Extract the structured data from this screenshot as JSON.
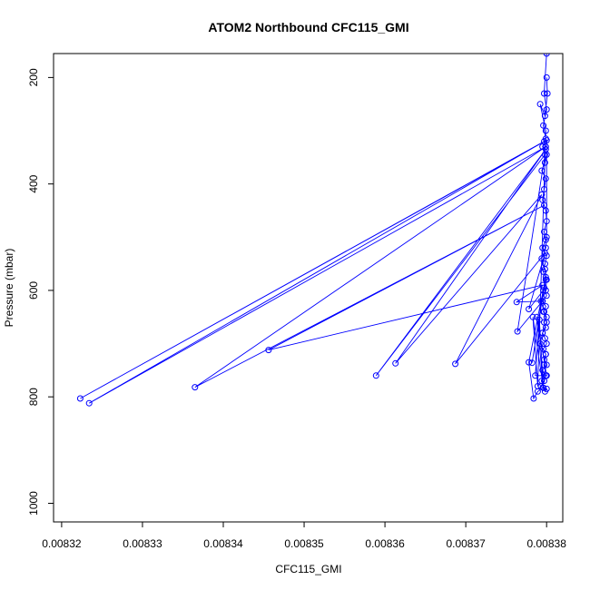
{
  "chart_data": {
    "type": "line",
    "title": "ATOM2 Northbound CFC115_GMI",
    "xlabel": "CFC115_GMI",
    "ylabel": "Pressure (mbar)",
    "xlim": [
      0.008319,
      0.008382
    ],
    "ylim": [
      1035,
      155
    ],
    "y_reversed": true,
    "x_ticks": [
      "0.00832",
      "0.00833",
      "0.00834",
      "0.00835",
      "0.00836",
      "0.00837",
      "0.00838"
    ],
    "y_ticks": [
      "200",
      "400",
      "600",
      "800",
      "1000"
    ],
    "series_color": "#0000ff",
    "markers": "open-circle",
    "grid": false,
    "series": [
      {
        "x": [
          0.00838,
          0.0083797,
          0.00838,
          0.0083796,
          0.0083799,
          0.0083795,
          0.00838,
          0.0083798,
          0.0083794,
          0.0083799,
          0.0083797,
          0.0083795,
          0.0083799,
          0.00838,
          0.0083797,
          0.0083799,
          0.0083795,
          0.00838,
          0.0083798,
          0.0083796,
          0.0083799,
          0.0083797,
          0.00838,
          0.0083795,
          0.0083799,
          0.0083796,
          0.00838,
          0.0083797,
          0.0083799,
          0.0083795,
          0.0083798,
          0.00838,
          0.0083796,
          0.0083799,
          0.0083797,
          0.00838,
          0.0083795,
          0.0083799,
          0.0083797,
          0.0083793,
          0.00838,
          0.0083798,
          0.0083794,
          0.00838,
          0.0083797,
          0.0083799,
          0.0083792,
          0.0083795,
          0.00838,
          0.0083797,
          0.0083793,
          0.0083799,
          0.00838,
          0.0083798,
          0.0083794,
          0.0083799,
          0.00838,
          0.00838,
          0.0083223,
          0.0083797,
          0.0083234,
          0.0083799,
          0.0083365,
          0.0083797,
          0.0083456,
          0.0083795,
          0.0083763,
          0.0083795,
          0.0083764,
          0.0083798,
          0.0083589,
          0.0083799,
          0.0083613,
          0.0083794,
          0.0083687,
          0.0083798,
          0.0083778,
          0.0083796,
          0.0083782,
          0.0083799,
          0.0083778,
          0.0083784,
          0.0083789,
          0.0083796,
          0.0083791,
          0.0083786,
          0.00838,
          0.0083788,
          0.0083796,
          0.0083783,
          0.0083789,
          0.0083799,
          0.0083792,
          0.0083798,
          0.0083801,
          0.00838
        ],
        "y": [
          155,
          230,
          260,
          290,
          315,
          330,
          345,
          360,
          375,
          390,
          410,
          430,
          450,
          470,
          490,
          505,
          520,
          535,
          550,
          565,
          580,
          595,
          610,
          620,
          630,
          640,
          650,
          660,
          670,
          680,
          690,
          700,
          710,
          720,
          730,
          740,
          750,
          760,
          770,
          780,
          785,
          790,
          770,
          760,
          740,
          720,
          700,
          680,
          660,
          640,
          620,
          600,
          580,
          560,
          540,
          520,
          500,
          318,
          803,
          320,
          812,
          330,
          782,
          440,
          712,
          590,
          622,
          620,
          677,
          345,
          760,
          335,
          737,
          420,
          738,
          530,
          635,
          600,
          736,
          575,
          735,
          803,
          790,
          783,
          655,
          760,
          760,
          650,
          783,
          650,
          780,
          300,
          250,
          272,
          230,
          200
        ]
      }
    ]
  }
}
